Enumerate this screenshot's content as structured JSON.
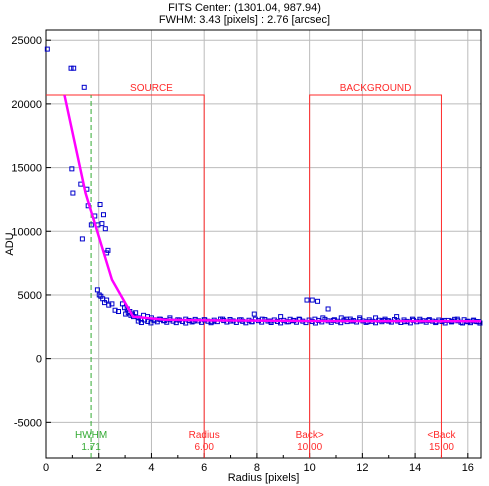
{
  "chart_data": {
    "type": "scatter",
    "title_lines": [
      "FITS Center: (1301.04,  987.94)",
      "FWHM: 3.43 [pixels] : 2.76 [arcsec]"
    ],
    "xlabel": "Radius [pixels]",
    "ylabel": "ADU",
    "xlim": [
      0,
      16.5
    ],
    "ylim": [
      -7800,
      25800
    ],
    "x_ticks": [
      0,
      2,
      4,
      6,
      8,
      10,
      12,
      14,
      16
    ],
    "y_ticks": [
      -5000,
      0,
      5000,
      10000,
      15000,
      20000,
      25000
    ],
    "grid": true,
    "colors": {
      "points": "#0000cc",
      "fit_line": "#ff00ff",
      "apertures": "#ff2a2a",
      "hwhm": "#33aa33",
      "grid": "#bbbbbb"
    },
    "apertures": {
      "source": {
        "label": "SOURCE",
        "radius": 6.0,
        "level": 20700
      },
      "background": {
        "label": "BACKGROUND",
        "inner": 10.0,
        "outer": 15.0,
        "level": 20700
      }
    },
    "markers": [
      {
        "label": "HWHM",
        "value_text": "1.71",
        "x": 1.71,
        "kind": "hwhm"
      },
      {
        "label": "Radius",
        "value_text": "6.00",
        "x": 6.0,
        "kind": "aperture"
      },
      {
        "label": "Back>",
        "value_text": "10.00",
        "x": 10.0,
        "kind": "aperture"
      },
      {
        "label": "<Back",
        "value_text": "15.00",
        "x": 15.0,
        "kind": "aperture"
      }
    ],
    "fit_line": {
      "x": [
        0.7,
        1.5,
        2.5,
        3.3,
        4.5,
        6,
        8,
        10,
        12,
        14,
        16.5
      ],
      "y": [
        20700,
        13000,
        6200,
        3300,
        3050,
        3000,
        2980,
        2960,
        2950,
        2945,
        2940
      ]
    },
    "series": [
      {
        "x": [
          0.05,
          0.95,
          1.05,
          1.45,
          0.98,
          1.02,
          1.32,
          1.38,
          1.55,
          1.6,
          1.72,
          1.85,
          1.97,
          2.05,
          2.12,
          2.18,
          2.25,
          2.35,
          2.3,
          1.95,
          2.02,
          2.08,
          2.15,
          2.22,
          2.3,
          2.38,
          2.5,
          2.62,
          2.75,
          2.9,
          2.98,
          3.02,
          3.08,
          3.12,
          3.18,
          3.22,
          3.28,
          3.32,
          3.4,
          3.5,
          3.6,
          3.7,
          3.85,
          4.0,
          4.1,
          4.3,
          4.5,
          4.7,
          5.0,
          5.3,
          5.6,
          6.0,
          6.3,
          6.7,
          7.0,
          7.4,
          7.8,
          7.9,
          8.2,
          8.5,
          8.9,
          9.2,
          9.4,
          9.6,
          9.9,
          10.1,
          10.2,
          10.3,
          10.5,
          10.7,
          10.9,
          11.2,
          11.4,
          11.6,
          11.9,
          12.2,
          12.5,
          12.8,
          13.0,
          13.3,
          13.6,
          13.9,
          14.2,
          14.5,
          14.8,
          15.1,
          15.4,
          15.6,
          15.8,
          16.0,
          16.2,
          16.4
        ],
        "y": [
          24300,
          22800,
          22800,
          21300,
          14900,
          13000,
          13700,
          9400,
          13300,
          12000,
          10500,
          11200,
          10500,
          12100,
          10600,
          11300,
          10200,
          8500,
          8300,
          5400,
          5000,
          4900,
          4700,
          4400,
          4600,
          4200,
          4300,
          3800,
          3700,
          4300,
          4000,
          3500,
          3900,
          3600,
          3700,
          3400,
          3500,
          3300,
          3600,
          3200,
          3100,
          3400,
          3300,
          3200,
          3050,
          3100,
          3000,
          3200,
          3050,
          3100,
          2950,
          3050,
          2900,
          3100,
          2950,
          3050,
          2900,
          3500,
          3100,
          2950,
          3300,
          2900,
          3000,
          3100,
          4600,
          4600,
          3100,
          4500,
          3200,
          3900,
          3000,
          3200,
          3100,
          2950,
          3200,
          2900,
          3200,
          3000,
          2950,
          3300,
          2900,
          3100,
          2950,
          3000,
          2900,
          3000,
          2950,
          3100,
          2800,
          2900,
          2950,
          2900
        ]
      }
    ]
  }
}
